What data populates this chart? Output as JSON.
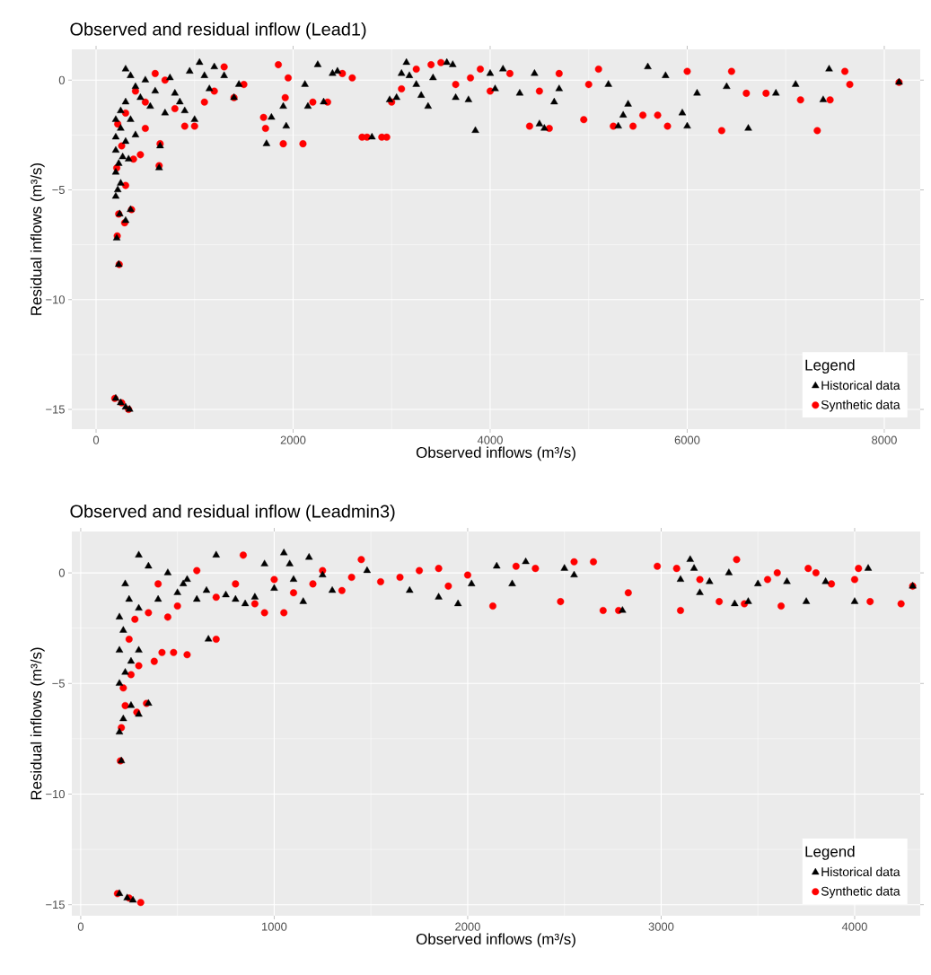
{
  "chart_data": [
    {
      "type": "scatter",
      "title": "Observed and residual inflow (Lead1)",
      "xlabel": "Observed inflows (m³/s)",
      "ylabel": "Residual inflows (m³/s)",
      "legend_title": "Legend",
      "legend": "bottom right",
      "grid": true,
      "xlim": [
        -246,
        8365
      ],
      "ylim": [
        -15.9,
        1.4
      ],
      "xticks": [
        0,
        2000,
        4000,
        6000,
        8000
      ],
      "yticks": [
        {
          "value": -15,
          "label": "−15"
        },
        {
          "value": -10,
          "label": "−10"
        },
        {
          "value": -5,
          "label": "−5"
        },
        0
      ],
      "series": [
        {
          "name": "Historical data",
          "color": "#000000",
          "marker": "triangle",
          "x": [
            200,
            250,
            300,
            340,
            230,
            210,
            240,
            300,
            350,
            200,
            220,
            250,
            200,
            230,
            200,
            270,
            330,
            200,
            250,
            300,
            200,
            250,
            300,
            350,
            400,
            300,
            350,
            400,
            450,
            500,
            550,
            600,
            650,
            640,
            700,
            750,
            800,
            850,
            900,
            950,
            1000,
            1050,
            1100,
            1150,
            1200,
            1300,
            1400,
            1450,
            1730,
            1780,
            1900,
            1930,
            2120,
            2150,
            2250,
            2310,
            2400,
            2450,
            2800,
            2980,
            3050,
            3100,
            3150,
            3180,
            3250,
            3300,
            3370,
            3420,
            3560,
            3620,
            3650,
            3780,
            3850,
            4000,
            4050,
            4130,
            4300,
            4450,
            4500,
            4550,
            4650,
            4700,
            5200,
            5300,
            5350,
            5400,
            5600,
            5780,
            5950,
            6000,
            6100,
            6400,
            6620,
            6900,
            7100,
            7380,
            7440,
            8150
          ],
          "values": [
            -14.5,
            -14.7,
            -14.9,
            -15,
            -8.4,
            -7.2,
            -6.1,
            -6.4,
            -5.9,
            -5.3,
            -5.0,
            -4.7,
            -4.2,
            -3.8,
            -3.2,
            -3.5,
            -3.6,
            -2.6,
            -2.2,
            -2.8,
            -1.8,
            -1.4,
            -1.0,
            -1.8,
            -2.5,
            0.5,
            0.2,
            -0.3,
            -0.8,
            0.0,
            -1.2,
            -0.5,
            -3.0,
            -4.0,
            -1.5,
            0.1,
            -0.6,
            -1.0,
            -1.4,
            0.4,
            -1.8,
            0.8,
            0.2,
            -0.4,
            0.6,
            0.2,
            -0.8,
            -0.2,
            -2.9,
            -1.7,
            -1.2,
            -2.1,
            -0.2,
            -1.2,
            0.7,
            -1.0,
            0.3,
            0.4,
            -2.6,
            -0.9,
            -0.8,
            0.3,
            0.8,
            0.2,
            -0.2,
            -0.7,
            -1.2,
            0.1,
            0.8,
            0.7,
            -0.8,
            -0.9,
            -2.3,
            0.3,
            -0.4,
            0.5,
            -0.6,
            0.3,
            -2.0,
            -2.2,
            -1.0,
            -0.4,
            -0.2,
            -2.1,
            -1.6,
            -1.1,
            0.6,
            0.2,
            -1.5,
            -2.1,
            -0.6,
            -0.3,
            -2.2,
            -0.6,
            -0.2,
            -0.9,
            0.5,
            -0.1
          ]
        },
        {
          "name": "Synthetic data",
          "color": "#ff0000",
          "marker": "circle",
          "x": [
            190,
            260,
            330,
            235,
            215,
            230,
            290,
            360,
            300,
            210,
            260,
            380,
            450,
            500,
            640,
            650,
            220,
            300,
            400,
            500,
            600,
            700,
            800,
            900,
            1000,
            1100,
            1200,
            1300,
            1400,
            1500,
            1700,
            1720,
            1850,
            1900,
            1920,
            1950,
            2100,
            2200,
            2350,
            2500,
            2600,
            2700,
            2750,
            2900,
            2950,
            3000,
            3100,
            3250,
            3400,
            3500,
            3650,
            3800,
            3900,
            4000,
            4200,
            4400,
            4500,
            4600,
            4700,
            4950,
            5000,
            5100,
            5250,
            5450,
            5550,
            5700,
            5800,
            6000,
            6350,
            6450,
            6600,
            6800,
            7150,
            7320,
            7450,
            7600,
            7650,
            8150
          ],
          "values": [
            -14.5,
            -14.7,
            -15,
            -8.4,
            -7.1,
            -6.1,
            -6.5,
            -5.9,
            -4.8,
            -4.0,
            -3.0,
            -3.6,
            -3.4,
            -2.2,
            -3.9,
            -2.9,
            -2.0,
            -1.5,
            -0.5,
            -1.0,
            0.3,
            0.0,
            -1.3,
            -2.1,
            -2.1,
            -1.0,
            -0.5,
            0.6,
            -0.8,
            -0.2,
            -1.7,
            -2.2,
            0.7,
            -2.9,
            -0.8,
            0.1,
            -2.9,
            -1.0,
            -1.0,
            0.3,
            0.1,
            -2.6,
            -2.6,
            -2.6,
            -2.6,
            -1.0,
            -0.4,
            0.5,
            0.7,
            0.8,
            -0.2,
            0.1,
            0.5,
            -0.5,
            0.3,
            -2.1,
            -0.5,
            -2.2,
            0.3,
            -1.8,
            -0.2,
            0.5,
            -2.1,
            -2.1,
            -1.6,
            -1.6,
            -2.1,
            0.4,
            -2.3,
            0.4,
            -0.6,
            -0.6,
            -0.9,
            -2.3,
            -0.9,
            0.4,
            -0.2,
            -0.1
          ]
        }
      ]
    },
    {
      "type": "scatter",
      "title": "Observed and residual inflow (Leadmin3)",
      "xlabel": "Observed inflows (m³/s)",
      "ylabel": "Residual inflows (m³/s)",
      "legend_title": "Legend",
      "legend": "bottom right",
      "grid": true,
      "xlim": [
        -46,
        4339
      ],
      "ylim": [
        -15.5,
        1.87
      ],
      "xticks": [
        0,
        1000,
        2000,
        3000,
        4000
      ],
      "yticks": [
        {
          "value": -15,
          "label": "−15"
        },
        {
          "value": -10,
          "label": "−10"
        },
        {
          "value": -5,
          "label": "−5"
        },
        0
      ],
      "series": [
        {
          "name": "Historical data",
          "color": "#000000",
          "marker": "triangle",
          "x": [
            200,
            240,
            270,
            210,
            200,
            220,
            260,
            300,
            350,
            200,
            230,
            260,
            300,
            200,
            220,
            200,
            250,
            300,
            230,
            350,
            300,
            400,
            450,
            500,
            530,
            550,
            600,
            650,
            660,
            700,
            750,
            800,
            850,
            900,
            950,
            1000,
            1050,
            1080,
            1100,
            1150,
            1180,
            1250,
            1300,
            1480,
            1700,
            1850,
            1950,
            2020,
            2150,
            2230,
            2300,
            2500,
            2550,
            2800,
            3100,
            3150,
            3170,
            3200,
            3250,
            3350,
            3380,
            3450,
            3500,
            3650,
            3750,
            3850,
            4000,
            4070,
            4300
          ],
          "values": [
            -14.5,
            -14.7,
            -14.8,
            -8.5,
            -7.2,
            -6.6,
            -6.0,
            -6.4,
            -5.9,
            -5.0,
            -4.5,
            -4.0,
            -3.5,
            -3.5,
            -2.6,
            -2.0,
            -1.2,
            0.8,
            -0.5,
            0.3,
            -1.6,
            -1.2,
            0.0,
            -0.9,
            -0.5,
            -0.3,
            -1.2,
            -0.8,
            -3.0,
            0.8,
            -1.0,
            -1.2,
            -1.4,
            -1.1,
            0.4,
            -0.7,
            0.9,
            0.4,
            -0.3,
            -1.3,
            0.7,
            -0.1,
            -0.8,
            0.1,
            -0.8,
            -1.1,
            -1.4,
            -0.5,
            0.3,
            -0.5,
            0.5,
            0.2,
            -0.1,
            -1.7,
            -0.3,
            0.6,
            0.2,
            -0.9,
            -0.4,
            0.0,
            -1.4,
            -1.3,
            -0.5,
            -0.4,
            -1.3,
            -0.4,
            -1.3,
            0.2,
            -0.6
          ]
        },
        {
          "name": "Synthetic data",
          "color": "#ff0000",
          "marker": "circle",
          "x": [
            190,
            250,
            310,
            205,
            210,
            230,
            290,
            340,
            220,
            260,
            300,
            380,
            420,
            480,
            550,
            700,
            250,
            280,
            350,
            400,
            450,
            500,
            600,
            700,
            800,
            840,
            900,
            950,
            1000,
            1050,
            1100,
            1200,
            1250,
            1350,
            1400,
            1450,
            1550,
            1650,
            1750,
            1850,
            1900,
            2000,
            2130,
            2250,
            2350,
            2480,
            2550,
            2650,
            2700,
            2780,
            2830,
            2980,
            3080,
            3100,
            3200,
            3300,
            3390,
            3430,
            3550,
            3600,
            3620,
            3760,
            3800,
            3880,
            4000,
            4020,
            4080,
            4240,
            4300
          ],
          "values": [
            -14.5,
            -14.7,
            -14.9,
            -8.5,
            -7.0,
            -6.0,
            -6.3,
            -5.9,
            -5.2,
            -4.6,
            -4.2,
            -4.0,
            -3.6,
            -3.6,
            -3.7,
            -3.0,
            -3.0,
            -2.1,
            -1.8,
            -0.5,
            -2.0,
            -1.5,
            0.1,
            -1.1,
            -0.5,
            0.8,
            -1.4,
            -1.8,
            -0.3,
            -1.8,
            -0.9,
            -0.5,
            0.1,
            -0.8,
            -0.2,
            0.6,
            -0.4,
            -0.2,
            0.1,
            0.2,
            -0.6,
            -0.1,
            -1.5,
            0.3,
            0.2,
            -1.3,
            0.5,
            0.5,
            -1.7,
            -1.7,
            -0.9,
            0.3,
            0.2,
            -1.7,
            -0.3,
            -1.3,
            0.6,
            -1.4,
            -0.3,
            0.0,
            -1.5,
            0.2,
            0.0,
            -0.5,
            -0.3,
            0.2,
            -1.3,
            -1.4,
            -0.6
          ]
        }
      ]
    }
  ]
}
